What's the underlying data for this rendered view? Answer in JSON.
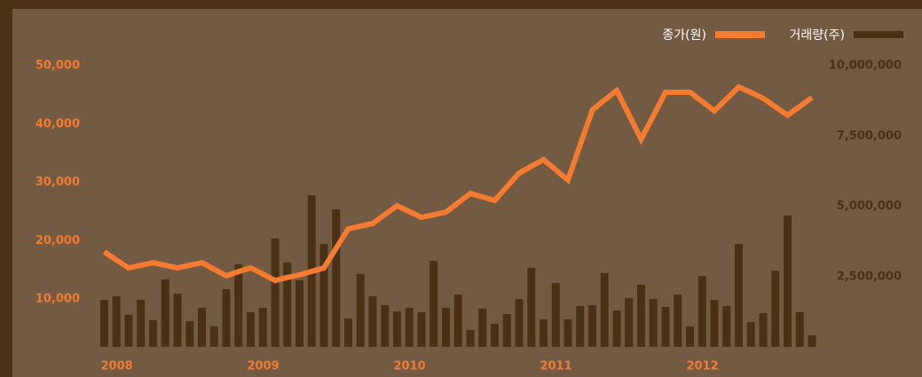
{
  "chart_data": {
    "type": "bar_line",
    "categories": [
      "2008",
      null,
      null,
      null,
      null,
      null,
      null,
      null,
      null,
      null,
      null,
      null,
      "2009",
      null,
      null,
      null,
      null,
      null,
      null,
      null,
      null,
      null,
      null,
      null,
      "2010",
      null,
      null,
      null,
      null,
      null,
      null,
      null,
      null,
      null,
      null,
      null,
      "2011",
      null,
      null,
      null,
      null,
      null,
      null,
      null,
      null,
      null,
      null,
      null,
      "2012",
      null,
      null,
      null,
      null,
      null,
      null,
      null,
      null,
      null,
      null
    ],
    "series": [
      {
        "name": "종가(원)",
        "type": "line",
        "axis": "y",
        "color": "#f47b30",
        "values": [
          18100,
          16700,
          15350,
          15800,
          16250,
          15800,
          15350,
          15800,
          16250,
          15100,
          14000,
          14700,
          15350,
          14300,
          13200,
          13700,
          14150,
          14750,
          15350,
          18700,
          22050,
          22500,
          22950,
          24500,
          26000,
          25000,
          24000,
          24450,
          24900,
          26500,
          28100,
          27500,
          26900,
          29250,
          31600,
          32750,
          33900,
          32150,
          30400,
          36400,
          42400,
          44100,
          45750,
          41600,
          37400,
          41400,
          45450,
          45450,
          45450,
          43850,
          42250,
          44300,
          46350,
          45400,
          44400,
          42950,
          41500,
          43000,
          44550
        ]
      },
      {
        "name": "거래량(주)",
        "type": "bar",
        "axis": "y2",
        "color": "#4a3015",
        "values": [
          1670000,
          1800000,
          1140000,
          1670000,
          950000,
          2400000,
          1890000,
          910000,
          1390000,
          730000,
          2050000,
          2930000,
          1230000,
          1390000,
          3850000,
          3000000,
          2370000,
          5390000,
          3660000,
          4890000,
          1010000,
          2590000,
          1800000,
          1480000,
          1260000,
          1390000,
          1230000,
          3060000,
          1390000,
          1860000,
          600000,
          1360000,
          820000,
          1170000,
          1700000,
          2810000,
          980000,
          2270000,
          980000,
          1450000,
          1480000,
          2620000,
          1290000,
          1740000,
          2210000,
          1700000,
          1420000,
          1860000,
          730000,
          2520000,
          1670000,
          1450000,
          3660000,
          880000,
          1200000,
          2710000,
          4670000,
          1230000,
          410000
        ]
      }
    ],
    "ylim": [
      0,
      50000
    ],
    "yticks": [
      {
        "value": 10000,
        "label": "10,000"
      },
      {
        "value": 20000,
        "label": "20,000"
      },
      {
        "value": 30000,
        "label": "30,000"
      },
      {
        "value": 40000,
        "label": "40,000"
      },
      {
        "value": 50000,
        "label": "50,000"
      }
    ],
    "y2lim": [
      0,
      10000000
    ],
    "y2ticks": [
      {
        "value": 2500000,
        "label": "2,500,000"
      },
      {
        "value": 5000000,
        "label": "5,000,000"
      },
      {
        "value": 7500000,
        "label": "7,500,000"
      },
      {
        "value": 10000000,
        "label": "10,000,000"
      }
    ],
    "legend": "top-right",
    "grid": false
  }
}
